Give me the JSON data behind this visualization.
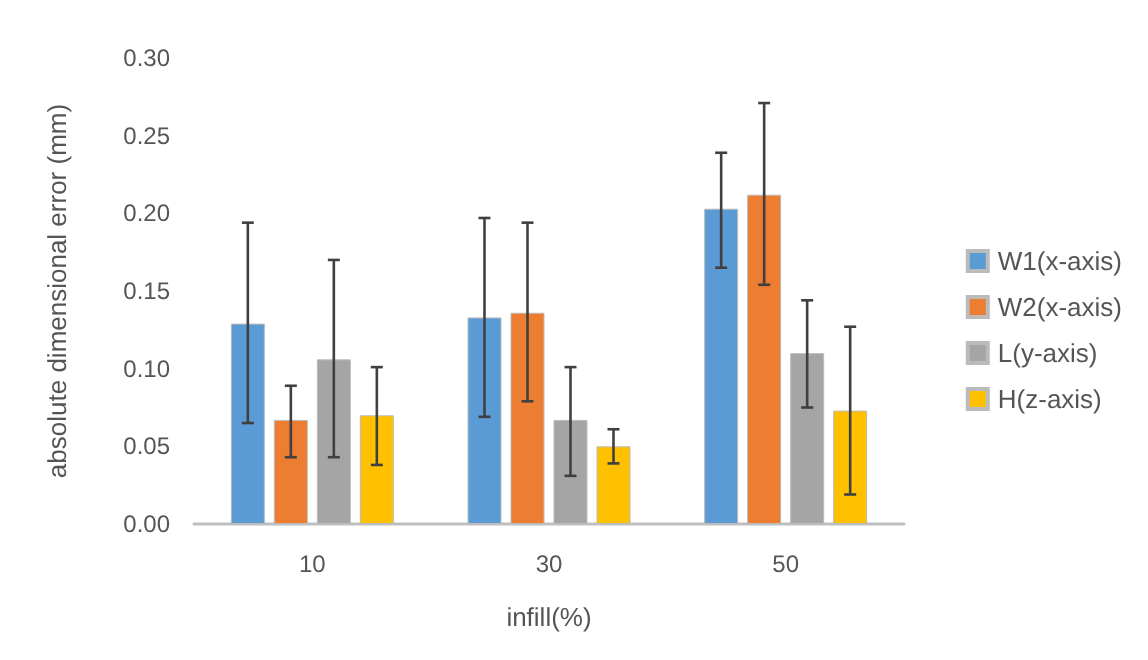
{
  "chart_data": {
    "type": "bar",
    "xlabel": "infill(%)",
    "ylabel": "absolute dimensional error (mm)",
    "categories": [
      "10",
      "30",
      "50"
    ],
    "series": [
      {
        "name": "W1(x-axis)",
        "color": "#5b9bd5",
        "values": [
          0.129,
          0.133,
          0.203
        ],
        "errors": [
          [
            0.065,
            0.194
          ],
          [
            0.069,
            0.197
          ],
          [
            0.165,
            0.239
          ]
        ]
      },
      {
        "name": "W2(x-axis)",
        "color": "#ed7d31",
        "values": [
          0.067,
          0.136,
          0.212
        ],
        "errors": [
          [
            0.043,
            0.089
          ],
          [
            0.079,
            0.194
          ],
          [
            0.154,
            0.271
          ]
        ]
      },
      {
        "name": "L(y-axis)",
        "color": "#a5a5a5",
        "values": [
          0.106,
          0.067,
          0.11
        ],
        "errors": [
          [
            0.043,
            0.17
          ],
          [
            0.031,
            0.101
          ],
          [
            0.075,
            0.144
          ]
        ]
      },
      {
        "name": "H(z-axis)",
        "color": "#ffc000",
        "values": [
          0.07,
          0.05,
          0.073
        ],
        "errors": [
          [
            0.038,
            0.101
          ],
          [
            0.039,
            0.061
          ],
          [
            0.019,
            0.127
          ]
        ]
      }
    ],
    "ylim": [
      0,
      0.3
    ],
    "yticks": [
      {
        "value": 0,
        "label": "0.00"
      },
      0.05,
      {
        "value": 0.1,
        "label": "0.10"
      },
      0.15,
      {
        "value": 0.2,
        "label": "0.20"
      },
      0.25,
      {
        "value": 0.3,
        "label": "0.30"
      }
    ],
    "grid": false,
    "legend": "right"
  }
}
